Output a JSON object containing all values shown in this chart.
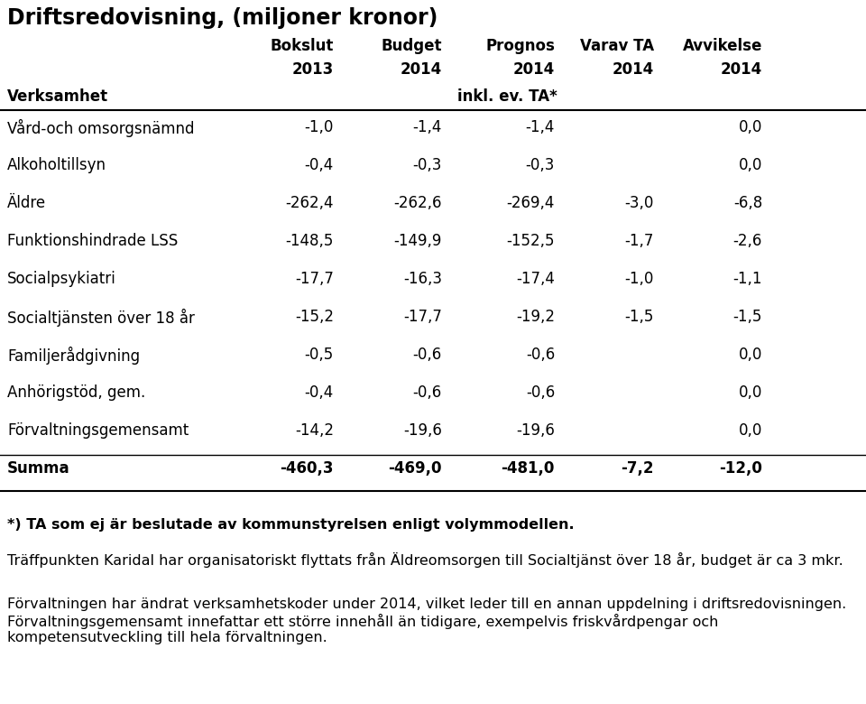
{
  "title": "Driftsredovisning, (miljoner kronor)",
  "col_headers_line1": [
    "",
    "Bokslut",
    "Budget",
    "Prognos",
    "Varav TA",
    "Avvikelse"
  ],
  "col_headers_line2": [
    "",
    "2013",
    "2014",
    "2014",
    "2014",
    "2014"
  ],
  "rows": [
    {
      "label": "Vård-och omsorgsnämnd",
      "v1": "-1,0",
      "v2": "-1,4",
      "v3": "-1,4",
      "v4": "",
      "v5": "0,0",
      "bold": false
    },
    {
      "label": "Alkoholtillsyn",
      "v1": "-0,4",
      "v2": "-0,3",
      "v3": "-0,3",
      "v4": "",
      "v5": "0,0",
      "bold": false
    },
    {
      "label": "Äldre",
      "v1": "-262,4",
      "v2": "-262,6",
      "v3": "-269,4",
      "v4": "-3,0",
      "v5": "-6,8",
      "bold": false
    },
    {
      "label": "Funktionshindrade LSS",
      "v1": "-148,5",
      "v2": "-149,9",
      "v3": "-152,5",
      "v4": "-1,7",
      "v5": "-2,6",
      "bold": false
    },
    {
      "label": "Socialpsykiatri",
      "v1": "-17,7",
      "v2": "-16,3",
      "v3": "-17,4",
      "v4": "-1,0",
      "v5": "-1,1",
      "bold": false
    },
    {
      "label": "Socialtjänsten över 18 år",
      "v1": "-15,2",
      "v2": "-17,7",
      "v3": "-19,2",
      "v4": "-1,5",
      "v5": "-1,5",
      "bold": false
    },
    {
      "label": "Familjerådgivning",
      "v1": "-0,5",
      "v2": "-0,6",
      "v3": "-0,6",
      "v4": "",
      "v5": "0,0",
      "bold": false
    },
    {
      "label": "Anhörigstöd, gem.",
      "v1": "-0,4",
      "v2": "-0,6",
      "v3": "-0,6",
      "v4": "",
      "v5": "0,0",
      "bold": false
    },
    {
      "label": "Förvaltningsgemensamt",
      "v1": "-14,2",
      "v2": "-19,6",
      "v3": "-19,6",
      "v4": "",
      "v5": "0,0",
      "bold": false
    },
    {
      "label": "Summa",
      "v1": "-460,3",
      "v2": "-469,0",
      "v3": "-481,0",
      "v4": "-7,2",
      "v5": "-12,0",
      "bold": true
    }
  ],
  "verksamhet_label": "Verksamhet",
  "inkl_label": "inkl. ev. TA*",
  "footnote_bold": "*) TA som ej är beslutade av kommunstyrelsen enligt volymmodellen.",
  "footnote1": "Träffpunkten Karidal har organisatoriskt flyttats från Äldreomsorgen till Socialtjänst över 18 år, budget är ca 3 mkr.",
  "footnote2": "Förvaltningen har ändrat verksamhetskoder under 2014, vilket leder till en annan uppdelning i driftsredovisningen. Förvaltningsgemensamt innefattar ett större innehåll än tidigare, exempelvis friskvårdpengar och kompetensutveckling till hela förvaltningen.",
  "bg_color": "#ffffff",
  "text_color": "#000000",
  "line_color": "#000000",
  "title_fontsize": 17,
  "header_fontsize": 12,
  "body_fontsize": 12,
  "footnote_fontsize": 11.5
}
